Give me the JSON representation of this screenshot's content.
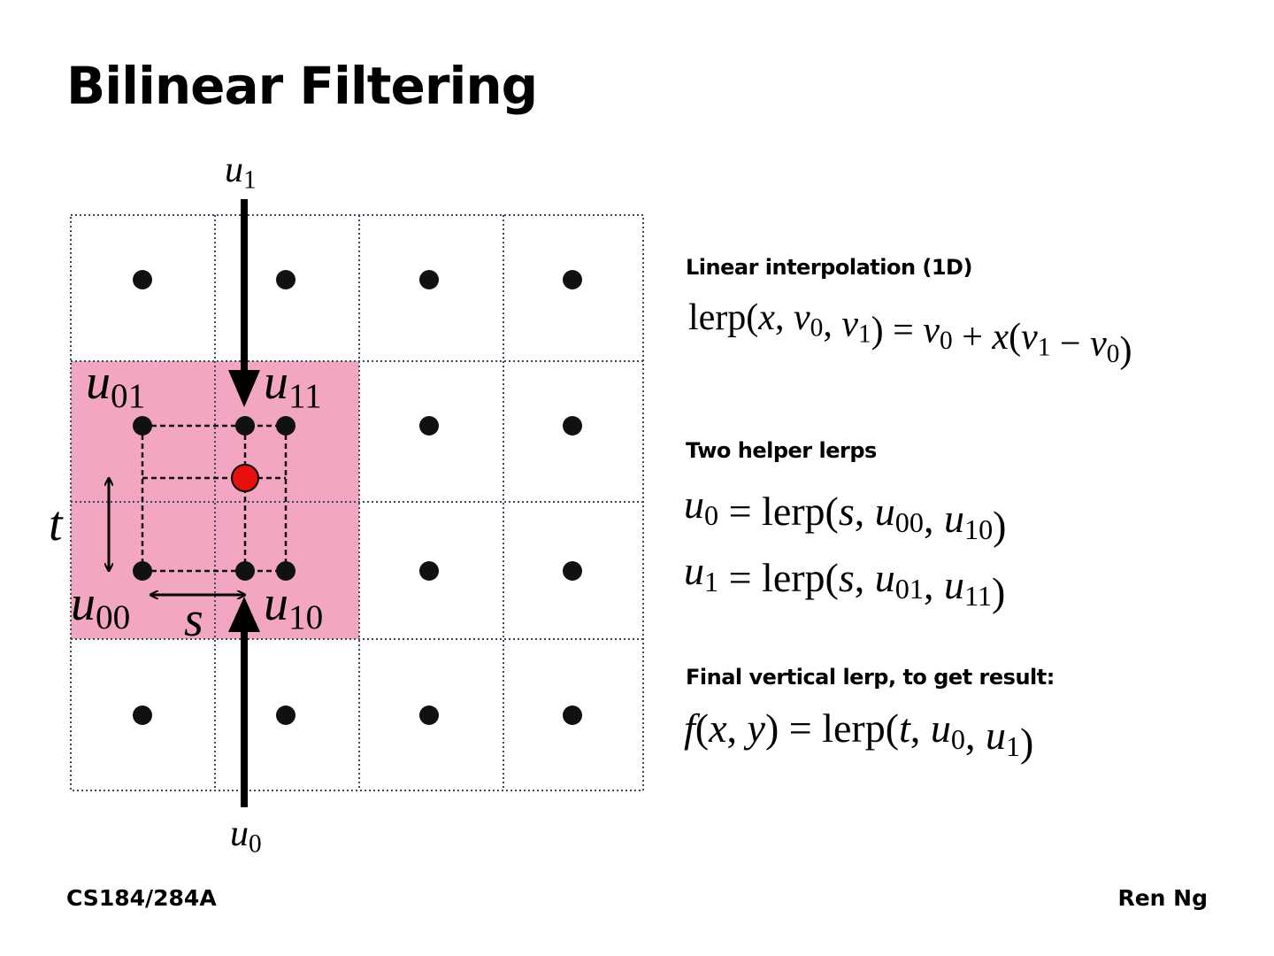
{
  "title": "Bilinear Filtering",
  "diagram": {
    "u1": [
      "u",
      {
        "sub": "1"
      }
    ],
    "u0": [
      "u",
      {
        "sub": "0"
      }
    ],
    "u01": [
      "u",
      {
        "sub": "01"
      }
    ],
    "u11": [
      "u",
      {
        "sub": "11"
      }
    ],
    "u00": [
      "u",
      {
        "sub": "00"
      }
    ],
    "u10": [
      "u",
      {
        "sub": "10"
      }
    ],
    "t": [
      "t"
    ],
    "s": [
      "s"
    ]
  },
  "sections": [
    {
      "heading": "Linear interpolation (1D)",
      "formulas": [
        [
          "lerp(",
          "x",
          ", ",
          "v",
          {
            "sub": "0"
          },
          ", ",
          "v",
          {
            "sub": "1"
          },
          ") = ",
          "v",
          {
            "sub": "0"
          },
          " + ",
          "x",
          "(",
          "v",
          {
            "sub": "1"
          },
          " − ",
          "v",
          {
            "sub": "0"
          },
          ")"
        ]
      ]
    },
    {
      "heading": "Two helper lerps",
      "formulas": [
        [
          "u",
          {
            "sub": "0"
          },
          " = lerp(",
          "s",
          ", ",
          "u",
          {
            "sub": "00"
          },
          ", ",
          "u",
          {
            "sub": "10"
          },
          ")"
        ],
        [
          "u",
          {
            "sub": "1"
          },
          " = lerp(",
          "s",
          ", ",
          "u",
          {
            "sub": "01"
          },
          ", ",
          "u",
          {
            "sub": "11"
          },
          ")"
        ]
      ]
    },
    {
      "heading": "Final vertical lerp, to get result:",
      "formulas": [
        [
          "f",
          "(",
          "x",
          ", ",
          "y",
          ") = lerp(",
          "t",
          ", ",
          "u",
          {
            "sub": "0"
          },
          ", ",
          "u",
          {
            "sub": "1"
          },
          ")"
        ]
      ]
    }
  ],
  "footer": {
    "left": "CS184/284A",
    "right": "Ren Ng"
  }
}
